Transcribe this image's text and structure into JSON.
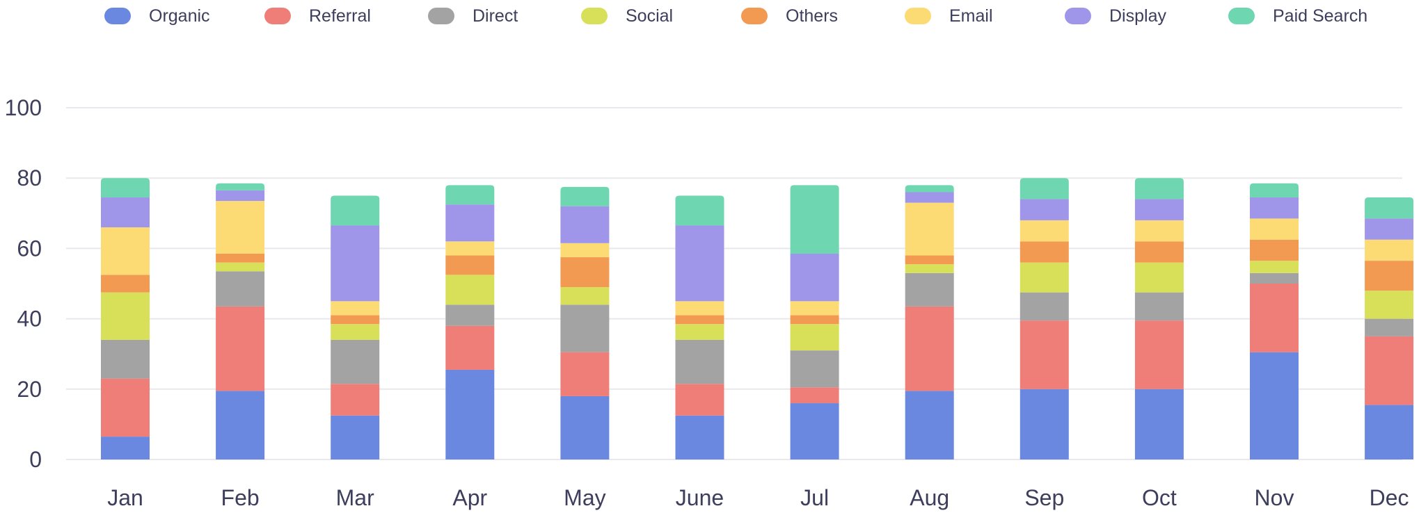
{
  "colors": {
    "axis_text": "#3d3e5c",
    "grid": "#e8e8ee"
  },
  "legend": {
    "placement": "top",
    "items": [
      {
        "label": "Organic",
        "color": "#6b88e0"
      },
      {
        "label": "Referral",
        "color": "#f07e78"
      },
      {
        "label": "Direct",
        "color": "#a3a3a3"
      },
      {
        "label": "Social",
        "color": "#d8e05a"
      },
      {
        "label": "Others",
        "color": "#f39a52"
      },
      {
        "label": "Email",
        "color": "#fddb74"
      },
      {
        "label": "Display",
        "color": "#9f96ea"
      },
      {
        "label": "Paid Search",
        "color": "#6ed6b1"
      }
    ]
  },
  "chart_data": {
    "type": "bar",
    "stacked": true,
    "grid": true,
    "ylim": [
      0,
      100
    ],
    "yticks": [
      "0",
      "20",
      "40",
      "60",
      "80",
      "100"
    ],
    "categories": [
      "Jan",
      "Feb",
      "Mar",
      "Apr",
      "May",
      "June",
      "Jul",
      "Aug",
      "Sep",
      "Oct",
      "Nov",
      "Dec"
    ],
    "series": [
      {
        "name": "Organic",
        "color": "#6b88e0",
        "values": [
          6.5,
          19.5,
          12.5,
          25.5,
          18,
          12.5,
          16,
          19.5,
          20,
          20,
          30.5,
          15.5
        ]
      },
      {
        "name": "Referral",
        "color": "#f07e78",
        "values": [
          16.5,
          24,
          9,
          12.5,
          12.5,
          9,
          4.5,
          24,
          19.5,
          19.5,
          19.5,
          19.5
        ]
      },
      {
        "name": "Direct",
        "color": "#a3a3a3",
        "values": [
          11,
          10,
          12.5,
          6,
          13.5,
          12.5,
          10.5,
          9.5,
          8,
          8,
          3,
          5
        ]
      },
      {
        "name": "Social",
        "color": "#d8e05a",
        "values": [
          13.5,
          2.5,
          4.5,
          8.5,
          5,
          4.5,
          7.5,
          2.5,
          8.5,
          8.5,
          3.5,
          8
        ]
      },
      {
        "name": "Others",
        "color": "#f39a52",
        "values": [
          5,
          2.5,
          2.5,
          5.5,
          8.5,
          2.5,
          2.5,
          2.5,
          6,
          6,
          6,
          8.5
        ]
      },
      {
        "name": "Email",
        "color": "#fddb74",
        "values": [
          13.5,
          15,
          4,
          4,
          4,
          4,
          4,
          15,
          6,
          6,
          6,
          6
        ]
      },
      {
        "name": "Display",
        "color": "#9f96ea",
        "values": [
          8.5,
          3,
          21.5,
          10.5,
          10.5,
          21.5,
          13.5,
          3,
          6,
          6,
          6,
          6
        ]
      },
      {
        "name": "Paid Search",
        "color": "#6ed6b1",
        "values": [
          5.5,
          2,
          8.5,
          5.5,
          5.5,
          8.5,
          19.5,
          2,
          6,
          6,
          4,
          6
        ]
      }
    ]
  }
}
